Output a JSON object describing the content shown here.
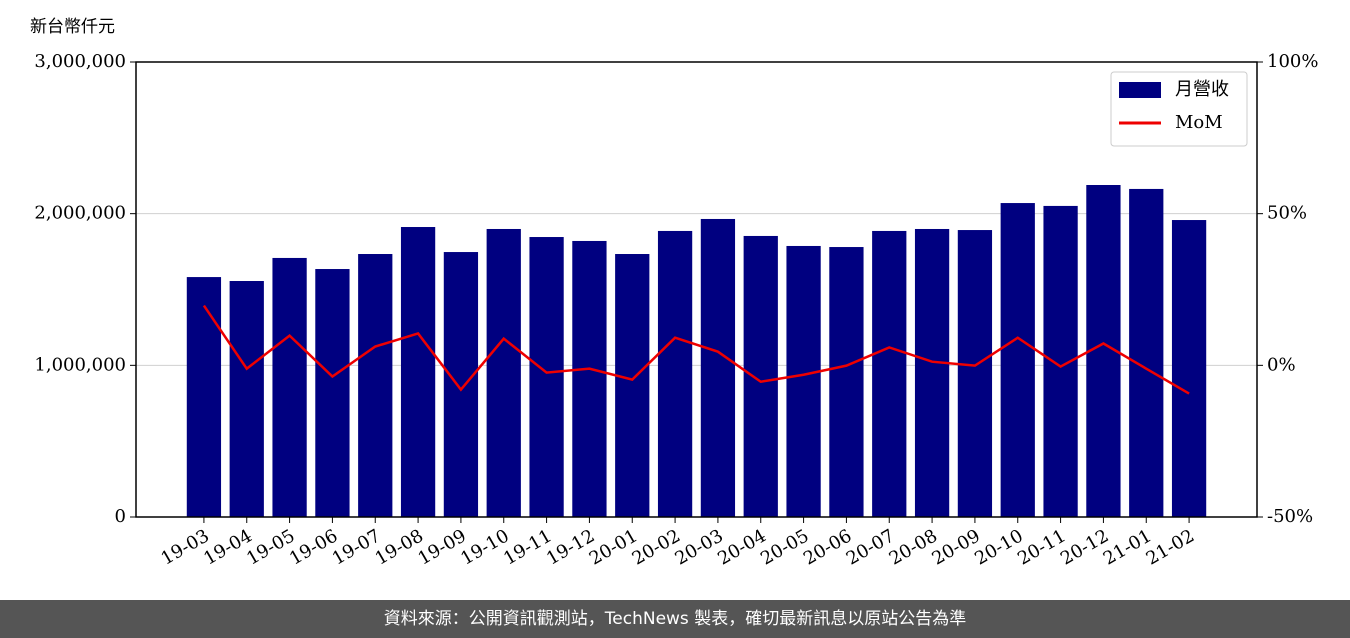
{
  "chart_data": {
    "type": "bar_line",
    "y_unit_label": "新台幣仟元",
    "categories": [
      "19-03",
      "19-04",
      "19-05",
      "19-06",
      "19-07",
      "19-08",
      "19-09",
      "19-10",
      "19-11",
      "19-12",
      "20-01",
      "20-02",
      "20-03",
      "20-04",
      "20-05",
      "20-06",
      "20-07",
      "20-08",
      "20-09",
      "20-10",
      "20-11",
      "20-12",
      "21-01",
      "21-02"
    ],
    "series": [
      {
        "name": "月營收",
        "color": "#000080",
        "values": [
          1582000,
          1556000,
          1708000,
          1635000,
          1734000,
          1912000,
          1747000,
          1899000,
          1846000,
          1820000,
          1734000,
          1886000,
          1965000,
          1853000,
          1787000,
          1780000,
          1886000,
          1899000,
          1892000,
          2070000,
          2051000,
          2189000,
          2163000,
          1958000
        ]
      },
      {
        "name": "MoM",
        "color": "#ee0000",
        "axis": "y2",
        "values": [
          19.7,
          -1.1,
          9.8,
          -3.7,
          6.2,
          10.5,
          -8.0,
          8.8,
          -2.4,
          -1.1,
          -4.7,
          9.1,
          4.5,
          -5.4,
          -3.1,
          -0.1,
          5.9,
          1.2,
          -0.1,
          9.1,
          -0.4,
          7.2,
          -1.1,
          -9.3
        ]
      }
    ],
    "ylim": [
      0,
      3000000
    ],
    "yticks": [
      0,
      {
        "value": 1000000,
        "label": "1,000,000"
      },
      {
        "value": 2000000,
        "label": "2,000,000"
      },
      {
        "value": 3000000,
        "label": "3,000,000"
      }
    ],
    "y2lim": [
      -50,
      100
    ],
    "y2ticks": [
      {
        "value": -50,
        "label": "-50%"
      },
      {
        "value": 0,
        "label": "0%"
      },
      {
        "value": 50,
        "label": "50%"
      },
      {
        "value": 100,
        "label": "100%"
      }
    ],
    "grid": true,
    "legend": "upper right",
    "footer": "資料來源：公開資訊觀測站，TechNews 製表，確切最新訊息以原站公告為準"
  }
}
